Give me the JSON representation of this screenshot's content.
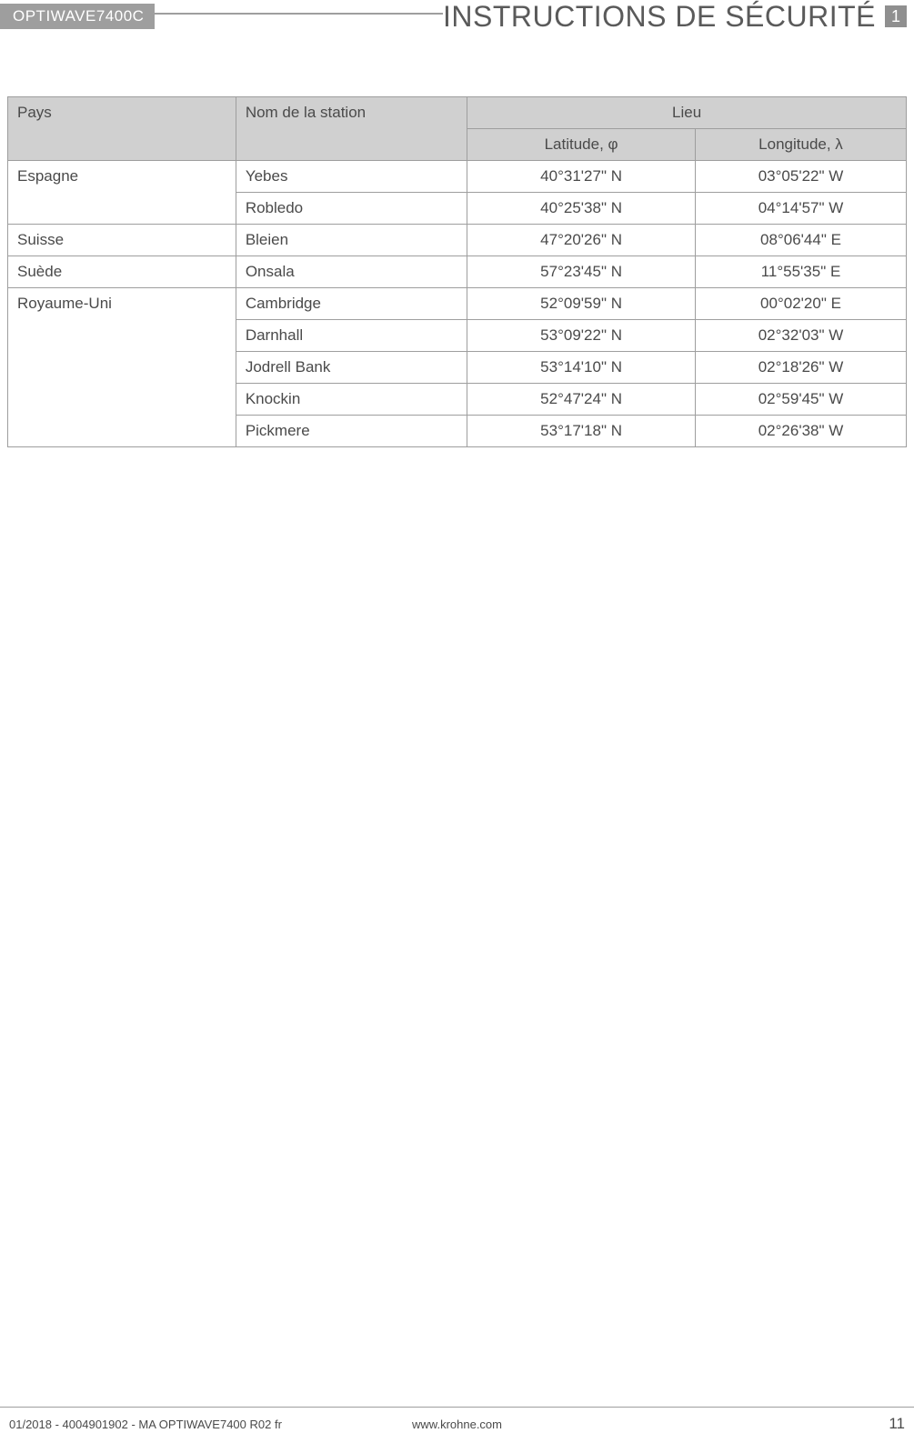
{
  "header": {
    "product": "OPTIWAVE7400C",
    "title": "INSTRUCTIONS DE SÉCURITÉ",
    "section_number": "1"
  },
  "table": {
    "headers": {
      "pays": "Pays",
      "station": "Nom de la station",
      "lieu": "Lieu",
      "latitude": "Latitude, φ",
      "longitude": "Longitude, λ"
    },
    "groups": [
      {
        "country": "Espagne",
        "rows": [
          {
            "station": "Yebes",
            "lat": "40°31'27\" N",
            "lon": "03°05'22\" W"
          },
          {
            "station": "Robledo",
            "lat": "40°25'38\" N",
            "lon": "04°14'57\" W"
          }
        ]
      },
      {
        "country": "Suisse",
        "rows": [
          {
            "station": "Bleien",
            "lat": "47°20'26\" N",
            "lon": "08°06'44\" E"
          }
        ]
      },
      {
        "country": "Suède",
        "rows": [
          {
            "station": "Onsala",
            "lat": "57°23'45\" N",
            "lon": "11°55'35\" E"
          }
        ]
      },
      {
        "country": "Royaume-Uni",
        "rows": [
          {
            "station": "Cambridge",
            "lat": "52°09'59\" N",
            "lon": "00°02'20\" E"
          },
          {
            "station": "Darnhall",
            "lat": "53°09'22\" N",
            "lon": "02°32'03\" W"
          },
          {
            "station": "Jodrell Bank",
            "lat": "53°14'10\" N",
            "lon": "02°18'26\" W"
          },
          {
            "station": "Knockin",
            "lat": "52°47'24\" N",
            "lon": "02°59'45\" W"
          },
          {
            "station": "Pickmere",
            "lat": "53°17'18\" N",
            "lon": "02°26'38\" W"
          }
        ]
      }
    ]
  },
  "footer": {
    "left": "01/2018 - 4004901902 - MA OPTIWAVE7400 R02 fr",
    "center": "www.krohne.com",
    "page": "11"
  }
}
